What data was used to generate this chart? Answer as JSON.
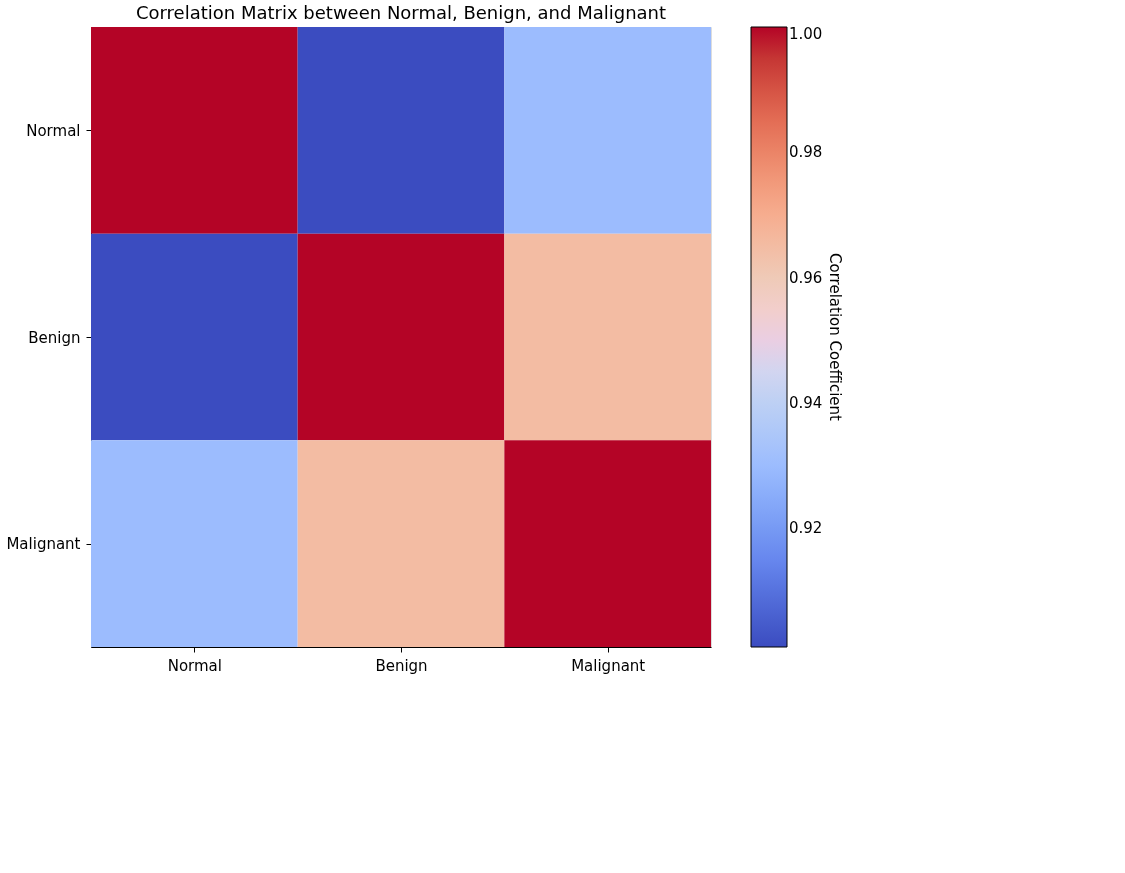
{
  "chart_data": {
    "type": "heatmap",
    "title": "Correlation Matrix between Normal, Benign, and Malignant",
    "clabel": "Correlation Coefficient",
    "categories": [
      "Normal",
      "Benign",
      "Malignant"
    ],
    "y_categories": [
      "Normal",
      "Benign",
      "Malignant"
    ],
    "cells": [
      [
        1.0,
        0.901,
        0.93
      ],
      [
        0.901,
        1.0,
        0.965
      ],
      [
        0.93,
        0.965,
        1.0
      ]
    ],
    "clim": [
      0.901,
      1.0
    ],
    "cticks": [
      0.92,
      0.94,
      0.96,
      0.98,
      {
        "value": 1.0,
        "label": "1.00"
      }
    ]
  }
}
